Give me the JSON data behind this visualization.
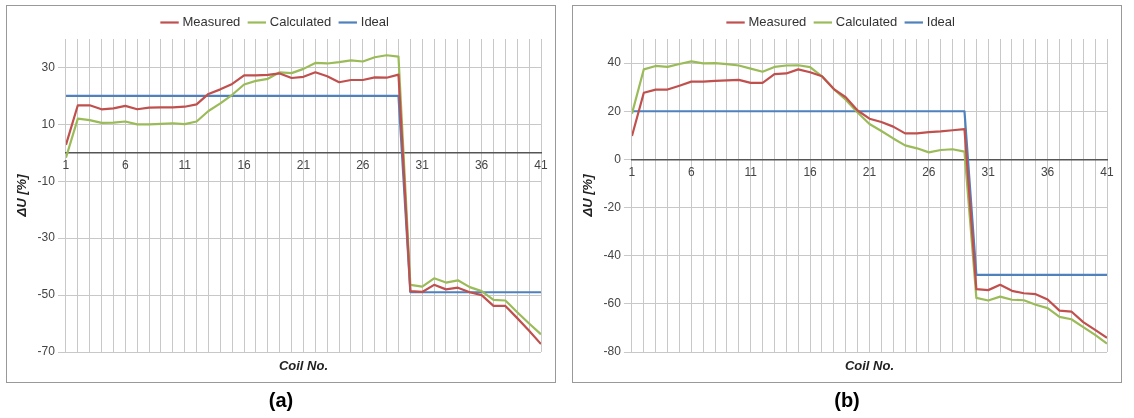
{
  "chart_data": [
    {
      "type": "line",
      "xlabel": "Coil No.",
      "ylabel": "ΔU [%]",
      "annotations": [
        "(a)"
      ],
      "legend": "top",
      "grid": true,
      "marker": "none",
      "line_style": "solid",
      "x": [
        1,
        2,
        3,
        4,
        5,
        6,
        7,
        8,
        9,
        10,
        11,
        12,
        13,
        14,
        15,
        16,
        17,
        18,
        19,
        20,
        21,
        22,
        23,
        24,
        25,
        26,
        27,
        28,
        29,
        30,
        31,
        32,
        33,
        34,
        35,
        36,
        37,
        38,
        39,
        40,
        41
      ],
      "xlim": [
        1,
        41
      ],
      "xticks": [
        1,
        {
          "value": 2,
          "label": null
        },
        {
          "value": 3,
          "label": null
        },
        {
          "value": 4,
          "label": null
        },
        {
          "value": 5,
          "label": null
        },
        6,
        {
          "value": 7,
          "label": null
        },
        {
          "value": 8,
          "label": null
        },
        {
          "value": 9,
          "label": null
        },
        {
          "value": 10,
          "label": null
        },
        11,
        {
          "value": 12,
          "label": null
        },
        {
          "value": 13,
          "label": null
        },
        {
          "value": 14,
          "label": null
        },
        {
          "value": 15,
          "label": null
        },
        16,
        {
          "value": 17,
          "label": null
        },
        {
          "value": 18,
          "label": null
        },
        {
          "value": 19,
          "label": null
        },
        {
          "value": 20,
          "label": null
        },
        21,
        {
          "value": 22,
          "label": null
        },
        {
          "value": 23,
          "label": null
        },
        {
          "value": 24,
          "label": null
        },
        {
          "value": 25,
          "label": null
        },
        26,
        {
          "value": 27,
          "label": null
        },
        {
          "value": 28,
          "label": null
        },
        {
          "value": 29,
          "label": null
        },
        {
          "value": 30,
          "label": null
        },
        31,
        {
          "value": 32,
          "label": null
        },
        {
          "value": 33,
          "label": null
        },
        {
          "value": 34,
          "label": null
        },
        {
          "value": 35,
          "label": null
        },
        36,
        {
          "value": 37,
          "label": null
        },
        {
          "value": 38,
          "label": null
        },
        {
          "value": 39,
          "label": null
        },
        {
          "value": 40,
          "label": null
        },
        41
      ],
      "ylim": [
        -70,
        40
      ],
      "yticks": [
        -70,
        -50,
        -30,
        -10,
        10,
        30
      ],
      "series": [
        {
          "name": "Measured",
          "color": "#c0504d",
          "values": [
            2.8,
            16.7,
            16.7,
            15.3,
            15.6,
            16.5,
            15.3,
            15.9,
            16,
            16,
            16.2,
            17,
            20.7,
            22.3,
            24.2,
            27.2,
            27.2,
            27.4,
            27.9,
            26.3,
            26.7,
            28.3,
            26.9,
            24.8,
            25.6,
            25.6,
            26.5,
            26.4,
            27.5,
            -48.6,
            -48.9,
            -46.4,
            -48,
            -47.4,
            -49,
            -50,
            -53.8,
            -53.8,
            -58.1,
            -62.5,
            -67.2
          ]
        },
        {
          "name": "Calculated",
          "color": "#9bbb59",
          "values": [
            -1.7,
            12,
            11.5,
            10.5,
            10.6,
            11,
            10,
            10,
            10.2,
            10.4,
            10.1,
            11,
            14.7,
            17.4,
            20.4,
            24,
            25.3,
            26,
            28.3,
            28,
            29.5,
            31.6,
            31.4,
            31.9,
            32.5,
            32.1,
            33.6,
            34.3,
            33.8,
            -46.4,
            -47,
            -44.1,
            -45.6,
            -44.8,
            -47.2,
            -48.6,
            -51.7,
            -51.9,
            -56,
            -60,
            -63.8
          ]
        },
        {
          "name": "Ideal",
          "color": "#4f81bd",
          "values": [
            20,
            20,
            20,
            20,
            20,
            20,
            20,
            20,
            20,
            20,
            20,
            20,
            20,
            20,
            20,
            20,
            20,
            20,
            20,
            20,
            20,
            20,
            20,
            20,
            20,
            20,
            20,
            20,
            20,
            -49,
            -49,
            -49,
            -49,
            -49,
            -49,
            -49,
            -49,
            -49,
            -49,
            -49,
            -49
          ]
        }
      ]
    },
    {
      "type": "line",
      "xlabel": "Coil No.",
      "ylabel": "ΔU [%]",
      "annotations": [
        "(b)"
      ],
      "legend": "top",
      "grid": true,
      "marker": "none",
      "line_style": "solid",
      "x": [
        1,
        2,
        3,
        4,
        5,
        6,
        7,
        8,
        9,
        10,
        11,
        12,
        13,
        14,
        15,
        16,
        17,
        18,
        19,
        20,
        21,
        22,
        23,
        24,
        25,
        26,
        27,
        28,
        29,
        30,
        31,
        32,
        33,
        34,
        35,
        36,
        37,
        38,
        39,
        40,
        41
      ],
      "xlim": [
        1,
        41
      ],
      "xticks": [
        1,
        {
          "value": 2,
          "label": null
        },
        {
          "value": 3,
          "label": null
        },
        {
          "value": 4,
          "label": null
        },
        {
          "value": 5,
          "label": null
        },
        6,
        {
          "value": 7,
          "label": null
        },
        {
          "value": 8,
          "label": null
        },
        {
          "value": 9,
          "label": null
        },
        {
          "value": 10,
          "label": null
        },
        11,
        {
          "value": 12,
          "label": null
        },
        {
          "value": 13,
          "label": null
        },
        {
          "value": 14,
          "label": null
        },
        {
          "value": 15,
          "label": null
        },
        16,
        {
          "value": 17,
          "label": null
        },
        {
          "value": 18,
          "label": null
        },
        {
          "value": 19,
          "label": null
        },
        {
          "value": 20,
          "label": null
        },
        21,
        {
          "value": 22,
          "label": null
        },
        {
          "value": 23,
          "label": null
        },
        {
          "value": 24,
          "label": null
        },
        {
          "value": 25,
          "label": null
        },
        26,
        {
          "value": 27,
          "label": null
        },
        {
          "value": 28,
          "label": null
        },
        {
          "value": 29,
          "label": null
        },
        {
          "value": 30,
          "label": null
        },
        31,
        {
          "value": 32,
          "label": null
        },
        {
          "value": 33,
          "label": null
        },
        {
          "value": 34,
          "label": null
        },
        {
          "value": 35,
          "label": null
        },
        36,
        {
          "value": 37,
          "label": null
        },
        {
          "value": 38,
          "label": null
        },
        {
          "value": 39,
          "label": null
        },
        {
          "value": 40,
          "label": null
        },
        41
      ],
      "ylim": [
        -80,
        50
      ],
      "yticks": [
        -80,
        -60,
        -40,
        -20,
        0,
        20,
        40
      ],
      "series": [
        {
          "name": "Measured",
          "color": "#c0504d",
          "values": [
            9.7,
            27.7,
            29,
            29,
            30.6,
            32.3,
            32.3,
            32.6,
            32.8,
            33,
            31.8,
            31.8,
            35.4,
            35.7,
            37.4,
            36.2,
            34.5,
            29.2,
            25.8,
            20.3,
            16.9,
            15.5,
            13.6,
            10.8,
            10.8,
            11.3,
            11.6,
            12.1,
            12.6,
            -53.9,
            -54.3,
            -52.1,
            -54.6,
            -55.6,
            -56,
            -58.2,
            -62.8,
            -63.2,
            -67.6,
            -70.8,
            -74.1
          ]
        },
        {
          "name": "Calculated",
          "color": "#9bbb59",
          "values": [
            19,
            37.4,
            38.8,
            38.4,
            39.6,
            40.7,
            39.9,
            40,
            39.6,
            39,
            37.7,
            36.4,
            38.4,
            39,
            39.1,
            38.3,
            34.5,
            29.2,
            24.8,
            19.5,
            14.7,
            11.8,
            8.7,
            5.8,
            4.6,
            2.9,
            3.9,
            4.2,
            3.2,
            -57.5,
            -58.6,
            -57,
            -58.3,
            -58.5,
            -60.4,
            -61.8,
            -65.4,
            -66.4,
            -69.7,
            -72.9,
            -76.5
          ]
        },
        {
          "name": "Ideal",
          "color": "#4f81bd",
          "values": [
            20,
            20,
            20,
            20,
            20,
            20,
            20,
            20,
            20,
            20,
            20,
            20,
            20,
            20,
            20,
            20,
            20,
            20,
            20,
            20,
            20,
            20,
            20,
            20,
            20,
            20,
            20,
            20,
            20,
            -48,
            -48,
            -48,
            -48,
            -48,
            -48,
            -48,
            -48,
            -48,
            -48,
            -48,
            -48
          ]
        }
      ]
    }
  ]
}
